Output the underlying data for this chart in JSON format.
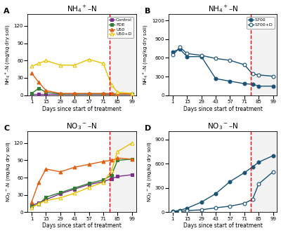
{
  "panel_A": {
    "title": "NH$_4$$^+$–N",
    "ylabel": "NH$_4$$^+$-N (mg/kg dry soil)",
    "xlabel": "Days since start of treatment",
    "dashed_line": 77,
    "ylim": [
      0,
      140
    ],
    "yticks": [
      0,
      30,
      60,
      90,
      120
    ],
    "days": [
      1,
      8,
      15,
      29,
      43,
      57,
      71,
      79,
      85,
      99
    ],
    "series": {
      "Control": {
        "color": "#7b2d8b",
        "marker": "s",
        "filled": true,
        "values": [
          2,
          2,
          2,
          2,
          2,
          2,
          2,
          2,
          2,
          2
        ]
      },
      "FDE": {
        "color": "#2e7d32",
        "marker": "s",
        "filled": true,
        "values": [
          3,
          12,
          5,
          2,
          2,
          2,
          2,
          2,
          2,
          2
        ]
      },
      "U50": {
        "color": "#e06010",
        "marker": "^",
        "filled": true,
        "values": [
          38,
          22,
          8,
          3,
          3,
          3,
          3,
          3,
          2,
          2
        ]
      },
      "U50+D": {
        "color": "#e8c000",
        "marker": "^",
        "filled": false,
        "values": [
          50,
          55,
          60,
          52,
          52,
          62,
          55,
          18,
          5,
          3
        ]
      }
    }
  },
  "panel_B": {
    "title": "NH$_4$$^+$–N",
    "ylabel": "NH$_4$$^+$-N (mg/kg dry soil)",
    "xlabel": "Days since start of treatment",
    "dashed_line": 77,
    "ylim": [
      0,
      1300
    ],
    "yticks": [
      0,
      300,
      600,
      900,
      1200
    ],
    "days": [
      1,
      8,
      15,
      29,
      43,
      57,
      71,
      79,
      85,
      99
    ],
    "series": {
      "S700": {
        "color": "#1a5276",
        "marker": "o",
        "filled": true,
        "values": [
          700,
          740,
          620,
          620,
          265,
          225,
          185,
          175,
          145,
          145
        ]
      },
      "S700+D": {
        "color": "#1a5276",
        "marker": "o",
        "filled": false,
        "values": [
          645,
          770,
          670,
          640,
          590,
          560,
          490,
          340,
          325,
          305
        ]
      }
    }
  },
  "panel_C": {
    "title": "NO$_3$$^-$–N",
    "ylabel": "NO$_3$$^-$-N (mg/kg dry soil)",
    "xlabel": "Days since start of treatment",
    "dashed_line": 77,
    "ylim": [
      0,
      140
    ],
    "yticks": [
      0,
      30,
      60,
      90,
      120
    ],
    "days": [
      1,
      8,
      15,
      29,
      43,
      57,
      71,
      79,
      85,
      99
    ],
    "series": {
      "Control": {
        "color": "#7b2d8b",
        "marker": "s",
        "filled": true,
        "values": [
          12,
          16,
          22,
          32,
          40,
          48,
          53,
          58,
          62,
          65
        ]
      },
      "FDE": {
        "color": "#2e7d32",
        "marker": "s",
        "filled": true,
        "values": [
          10,
          14,
          26,
          34,
          42,
          50,
          56,
          64,
          90,
          92
        ]
      },
      "U50": {
        "color": "#e06010",
        "marker": "^",
        "filled": true,
        "values": [
          18,
          52,
          75,
          70,
          78,
          83,
          88,
          90,
          94,
          92
        ]
      },
      "U50+D": {
        "color": "#e8c000",
        "marker": "^",
        "filled": false,
        "values": [
          8,
          15,
          20,
          25,
          33,
          43,
          52,
          72,
          105,
          120
        ]
      }
    }
  },
  "panel_D": {
    "title": "NO$_3$$^-$–N",
    "ylabel": "NO$_3$$^-$-N (mg/kg dry soil)",
    "xlabel": "Days since start of treatment",
    "dashed_line": 77,
    "ylim": [
      0,
      1000
    ],
    "yticks": [
      0,
      300,
      600,
      900
    ],
    "days": [
      1,
      8,
      15,
      29,
      43,
      57,
      71,
      79,
      85,
      99
    ],
    "series": {
      "S700": {
        "color": "#1a5276",
        "marker": "o",
        "filled": true,
        "values": [
          10,
          25,
          50,
          125,
          230,
          380,
          490,
          560,
          620,
          700
        ]
      },
      "S700+D": {
        "color": "#1a5276",
        "marker": "o",
        "filled": false,
        "values": [
          5,
          10,
          20,
          30,
          55,
          75,
          110,
          160,
          350,
          500
        ]
      }
    }
  }
}
